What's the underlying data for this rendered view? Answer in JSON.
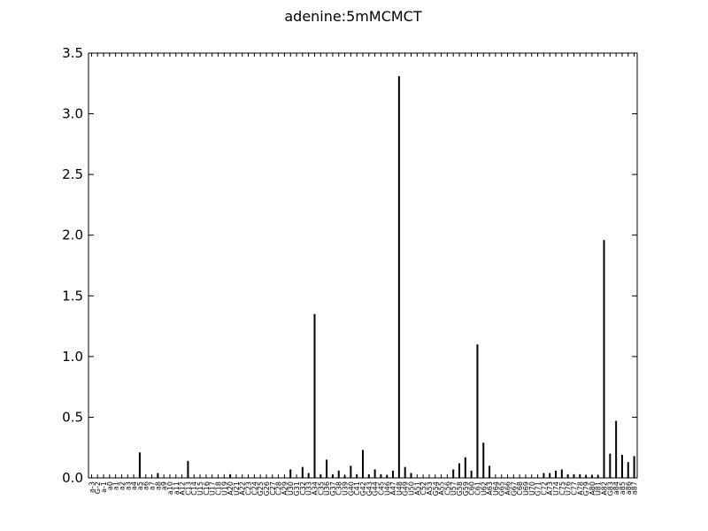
{
  "chart_data": {
    "type": "bar",
    "title": "adenine:5mMCMCT",
    "xlabel": "",
    "ylabel": "",
    "ylim": [
      0,
      3.5
    ],
    "yticks": [
      "0.0",
      "0.5",
      "1.0",
      "1.5",
      "2.0",
      "2.5",
      "3.0",
      "3.5"
    ],
    "grid": false,
    "bar_color": "#000000",
    "categories": [
      "a-3",
      "G-2",
      "a-1",
      "a0",
      "a1",
      "a2",
      "a3",
      "a4",
      "a5",
      "a6",
      "a7",
      "a8",
      "a9",
      "a10",
      "a11",
      "A12",
      "C13",
      "C14",
      "U15",
      "C16",
      "U17",
      "C18",
      "U19",
      "A20",
      "U21",
      "A22",
      "C23",
      "C24",
      "G25",
      "G26",
      "C27",
      "C28",
      "A29",
      "U30",
      "G31",
      "C32",
      "U33",
      "A34",
      "C35",
      "U36",
      "G37",
      "C38",
      "U39",
      "G40",
      "C41",
      "G42",
      "G43",
      "G44",
      "C45",
      "U46",
      "A47",
      "U48",
      "G49",
      "U50",
      "A51",
      "C52",
      "A53",
      "G54",
      "A55",
      "C56",
      "U57",
      "G58",
      "G59",
      "C60",
      "C61",
      "U62",
      "A63",
      "U64",
      "G65",
      "A66",
      "G67",
      "C68",
      "U69",
      "U70",
      "G71",
      "C72",
      "A73",
      "U74",
      "C75",
      "U76",
      "C77",
      "A78",
      "G79",
      "A80",
      "U81",
      "A82",
      "G83",
      "a84",
      "a85",
      "a86",
      "a87"
    ],
    "values": [
      0,
      0,
      0,
      0,
      0,
      0,
      0,
      0,
      0.21,
      0,
      0,
      0.04,
      0,
      0,
      0,
      0,
      0.14,
      0,
      0,
      0,
      0,
      0,
      0,
      0.03,
      0,
      0,
      0,
      0,
      0,
      0,
      0,
      0,
      0,
      0.07,
      0,
      0.09,
      0.04,
      1.35,
      0.03,
      0.15,
      0.03,
      0.06,
      0.02,
      0.1,
      0.03,
      0.23,
      0.03,
      0.07,
      0.03,
      0.02,
      0.06,
      3.31,
      0.09,
      0.04,
      0,
      0,
      0,
      0,
      0,
      0,
      0.07,
      0.12,
      0.17,
      0.06,
      1.1,
      0.29,
      0.1,
      0,
      0,
      0,
      0,
      0,
      0,
      0,
      0,
      0.04,
      0.04,
      0.06,
      0.07,
      0.03,
      0.03,
      0.03,
      0.02,
      0.02,
      0.02,
      1.96,
      0.2,
      0.47,
      0.19,
      0.13,
      0.18
    ]
  }
}
